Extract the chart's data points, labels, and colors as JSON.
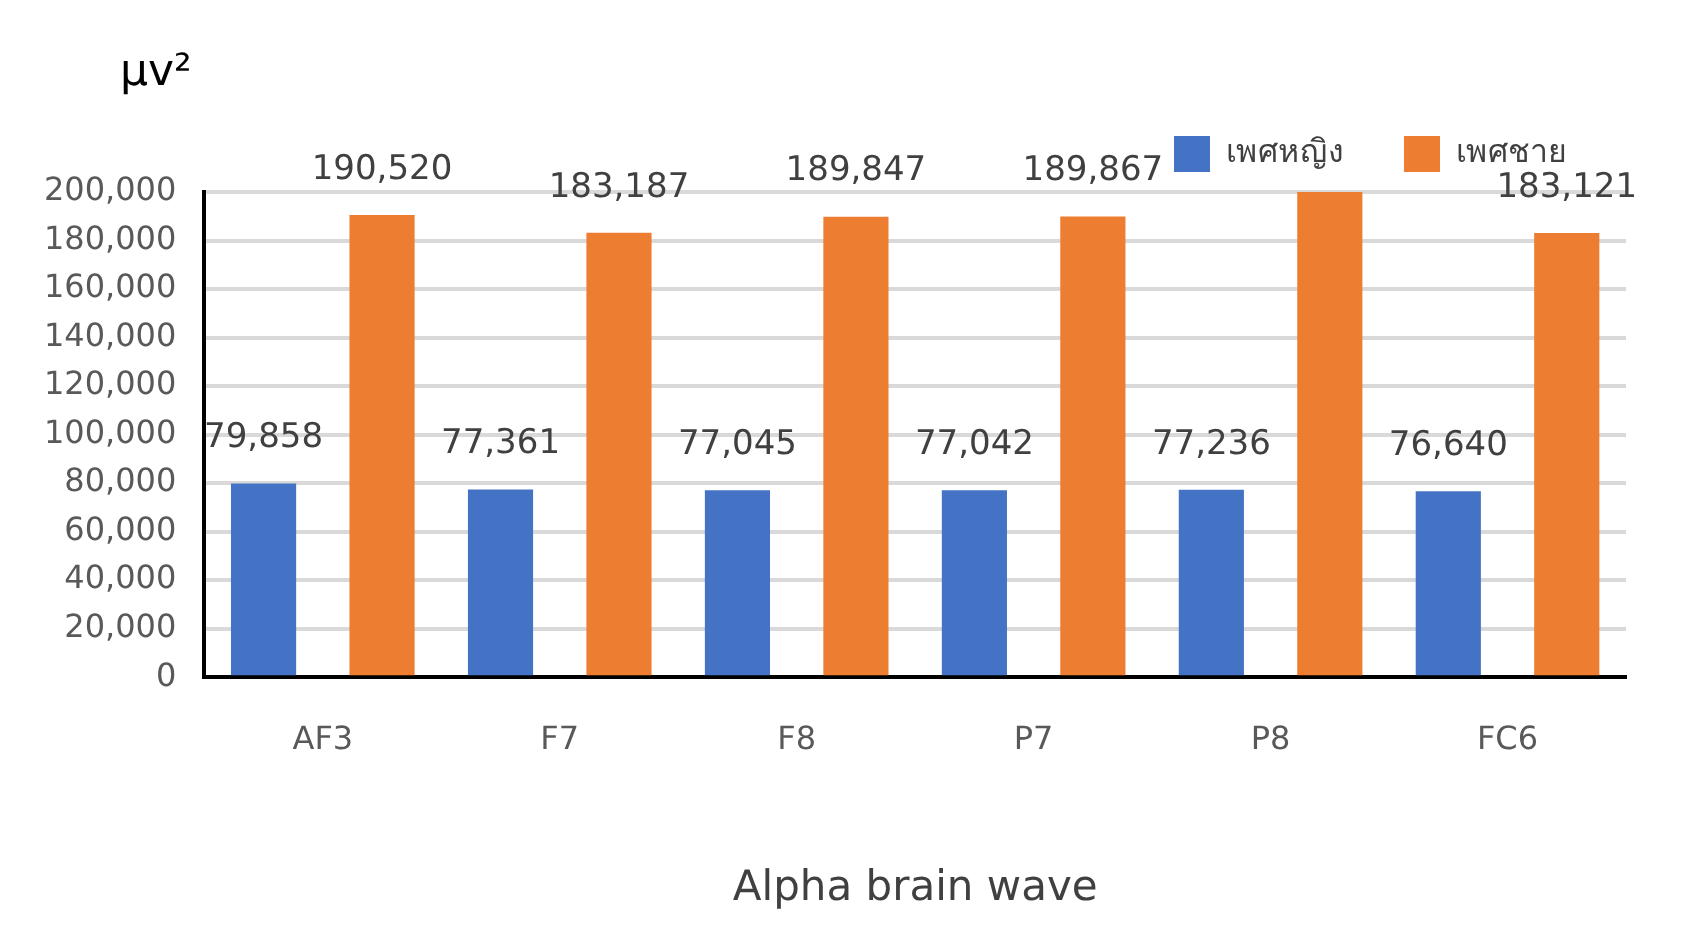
{
  "chart_data": {
    "type": "bar",
    "xlabel": "Alpha brain wave",
    "ylabel": "μv²",
    "categories": [
      "AF3",
      "F7",
      "F8",
      "P7",
      "P8",
      "FC6"
    ],
    "series": [
      {
        "name": "เพศหญิง",
        "color": "#4472c4",
        "values": [
          79858,
          77361,
          77045,
          77042,
          77236,
          76640
        ],
        "value_labels": [
          "79,858",
          "77,361",
          "77,045",
          "77,042",
          "77,236",
          "76,640"
        ]
      },
      {
        "name": "เพศชาย",
        "color": "#ed7d31",
        "values": [
          190520,
          183187,
          189847,
          189867,
          200000,
          183121
        ],
        "value_labels": [
          "190,520",
          "183,187",
          "189,847",
          "189,867",
          null,
          "183,121"
        ]
      }
    ],
    "ylim": [
      0,
      200000
    ],
    "yticks": [
      {
        "value": 0,
        "label": "0"
      },
      {
        "value": 20000,
        "label": "20,000"
      },
      {
        "value": 40000,
        "label": "40,000"
      },
      {
        "value": 60000,
        "label": "60,000"
      },
      {
        "value": 80000,
        "label": "80,000"
      },
      {
        "value": 100000,
        "label": "100,000"
      },
      {
        "value": 120000,
        "label": "120,000"
      },
      {
        "value": 140000,
        "label": "140,000"
      },
      {
        "value": 160000,
        "label": "160,000"
      },
      {
        "value": 180000,
        "label": "180,000"
      },
      {
        "value": 200000,
        "label": "200,000"
      }
    ],
    "grid": "y",
    "legend": "top right"
  }
}
